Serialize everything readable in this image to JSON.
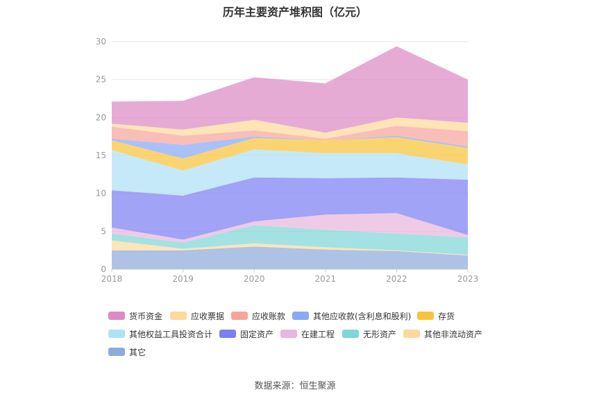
{
  "title": "历年主要资产堆积图（亿元）",
  "source": "数据来源：恒生聚源",
  "chart_data": {
    "type": "area",
    "stacked": true,
    "categories": [
      "2018",
      "2019",
      "2020",
      "2021",
      "2022",
      "2023"
    ],
    "ylim": [
      0,
      30
    ],
    "yticks": [
      "0",
      "5",
      "10",
      "15",
      "20",
      "25",
      "30"
    ],
    "grid": true,
    "legend_position": "bottom",
    "series": [
      {
        "name": "其它",
        "color": "#8faadc",
        "values": [
          2.5,
          2.5,
          3.0,
          2.6,
          2.4,
          1.8
        ]
      },
      {
        "name": "其他非流动资产",
        "color": "#fdd99b",
        "values": [
          1.3,
          0.2,
          0.4,
          0.3,
          0.1,
          0.1
        ]
      },
      {
        "name": "无形资产",
        "color": "#7fd6d8",
        "values": [
          0.9,
          0.8,
          2.4,
          2.3,
          2.2,
          2.3
        ]
      },
      {
        "name": "在建工程",
        "color": "#e9b6dd",
        "values": [
          0.8,
          0.4,
          0.5,
          2.0,
          2.7,
          0.3
        ]
      },
      {
        "name": "固定资产",
        "color": "#7b7ff2",
        "values": [
          4.9,
          5.8,
          5.8,
          4.8,
          4.7,
          7.3
        ]
      },
      {
        "name": "其他权益工具投资合计",
        "color": "#aee0f7",
        "values": [
          5.3,
          3.3,
          3.7,
          3.3,
          3.2,
          2.0
        ]
      },
      {
        "name": "存货",
        "color": "#f9c43c",
        "values": [
          1.3,
          1.6,
          1.5,
          1.7,
          2.1,
          2.2
        ]
      },
      {
        "name": "其他应收款(含利息和股利)",
        "color": "#88a9f5",
        "values": [
          0.2,
          1.8,
          0.2,
          0.0,
          0.2,
          0.2
        ]
      },
      {
        "name": "应收账款",
        "color": "#f7a59b",
        "values": [
          1.6,
          1.2,
          0.8,
          0.2,
          1.3,
          2.0
        ]
      },
      {
        "name": "应收票据",
        "color": "#fdd99b",
        "values": [
          0.4,
          0.8,
          1.4,
          0.8,
          1.1,
          1.1
        ]
      },
      {
        "name": "货币资金",
        "color": "#dd8ac4",
        "values": [
          2.9,
          3.8,
          5.6,
          6.5,
          9.4,
          5.7
        ]
      }
    ]
  },
  "legend_order": [
    "货币资金",
    "应收票据",
    "应收账款",
    "其他应收款(含利息和股利)",
    "存货",
    "其他权益工具投资合计",
    "固定资产",
    "在建工程",
    "无形资产",
    "其他非流动资产",
    "其它"
  ]
}
